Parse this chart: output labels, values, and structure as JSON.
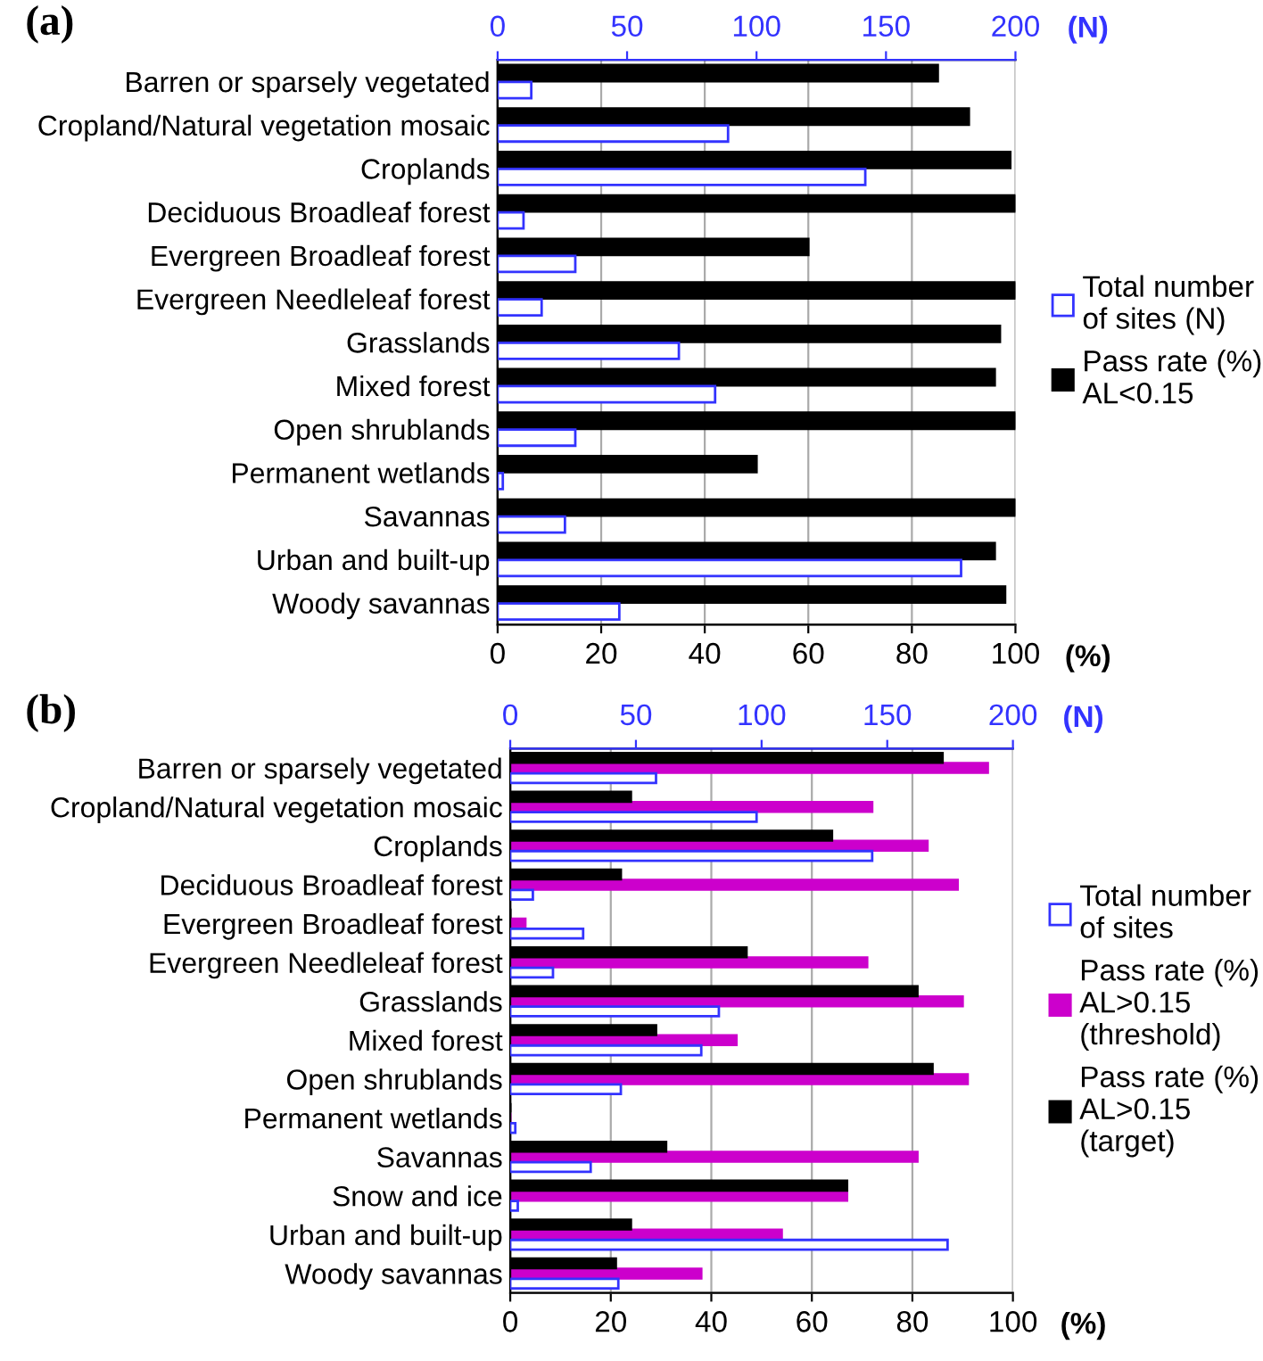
{
  "chart_data": [
    {
      "type": "bar",
      "orientation": "horizontal",
      "title": "(a)",
      "xlabel": "(%)",
      "x2label": "(N)",
      "categories": [
        "Barren or sparsely vegetated",
        "Cropland/Natural vegetation mosaic",
        "Croplands",
        "Deciduous Broadleaf forest",
        "Evergreen Broadleaf forest",
        "Evergreen Needleleaf forest",
        "Grasslands",
        "Mixed forest",
        "Open shrublands",
        "Permanent wetlands",
        "Savannas",
        "Urban and built-up",
        "Woody savannas"
      ],
      "series": [
        {
          "name": "Total number\nof sites (N)",
          "color": "#3333ff",
          "axis": "x2",
          "values": [
            13,
            89,
            142,
            10,
            30,
            17,
            70,
            84,
            30,
            2,
            26,
            179,
            47
          ]
        },
        {
          "name": "Pass rate (%)\nAL<0.15",
          "color": "#000000",
          "values": [
            85,
            91,
            99,
            100,
            60,
            100,
            97,
            96,
            100,
            50,
            100,
            96,
            98
          ]
        }
      ],
      "xlim": [
        0,
        100
      ],
      "xticks": [
        0,
        20,
        40,
        60,
        80,
        100
      ],
      "x2lim": [
        0,
        200
      ],
      "x2ticks": [
        0,
        50,
        100,
        150,
        200
      ],
      "grid": "x",
      "legend": "right"
    },
    {
      "type": "bar",
      "orientation": "horizontal",
      "title": "(b)",
      "xlabel": "(%)",
      "x2label": "(N)",
      "categories": [
        "Barren or sparsely vegetated",
        "Cropland/Natural vegetation mosaic",
        "Croplands",
        "Deciduous Broadleaf forest",
        "Evergreen Broadleaf forest",
        "Evergreen Needleleaf forest",
        "Grasslands",
        "Mixed forest",
        "Open shrublands",
        "Permanent wetlands",
        "Savannas",
        "Snow and ice",
        "Urban and built-up",
        "Woody savannas"
      ],
      "series": [
        {
          "name": "Total number\nof sites",
          "color": "#3333ff",
          "axis": "x2",
          "values": [
            58,
            98,
            144,
            9,
            29,
            17,
            83,
            76,
            44,
            2,
            32,
            3,
            174,
            43
          ]
        },
        {
          "name": "Pass rate (%)\nAL>0.15\n(threshold)",
          "color": "#cc00cc",
          "values": [
            95,
            72,
            83,
            89,
            3,
            71,
            90,
            45,
            91,
            0,
            81,
            67,
            54,
            38
          ]
        },
        {
          "name": "Pass rate (%)\nAL>0.15\n(target)",
          "color": "#000000",
          "values": [
            86,
            24,
            64,
            22,
            0,
            47,
            81,
            29,
            84,
            0,
            31,
            67,
            24,
            21
          ]
        }
      ],
      "xlim": [
        0,
        100
      ],
      "xticks": [
        0,
        20,
        40,
        60,
        80,
        100
      ],
      "x2lim": [
        0,
        200
      ],
      "x2ticks": [
        0,
        50,
        100,
        150,
        200
      ],
      "grid": "x",
      "legend": "right"
    }
  ]
}
